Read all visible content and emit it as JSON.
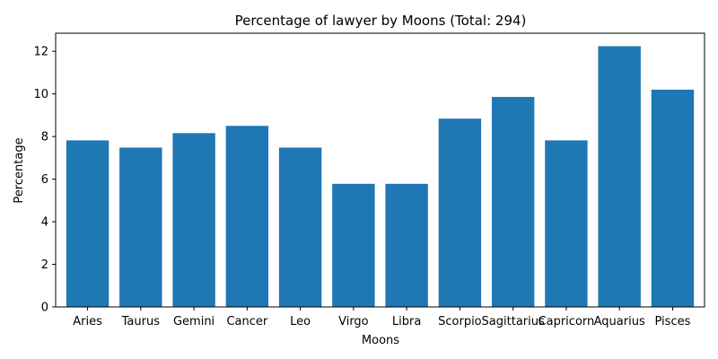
{
  "chart_data": {
    "type": "bar",
    "title": "Percentage of lawyer by Moons (Total: 294)",
    "xlabel": "Moons",
    "ylabel": "Percentage",
    "categories": [
      "Aries",
      "Taurus",
      "Gemini",
      "Cancer",
      "Leo",
      "Virgo",
      "Libra",
      "Scorpio",
      "Sagittarius",
      "Capricorn",
      "Aquarius",
      "Pisces"
    ],
    "values": [
      7.82,
      7.48,
      8.16,
      8.5,
      7.48,
      5.78,
      5.78,
      8.84,
      9.86,
      7.82,
      12.24,
      10.2
    ],
    "ylim": [
      0,
      12.85
    ],
    "yticks": [
      0,
      2,
      4,
      6,
      8,
      10,
      12
    ],
    "bar_color": "#1f77b4",
    "grid": false,
    "legend": "none"
  }
}
